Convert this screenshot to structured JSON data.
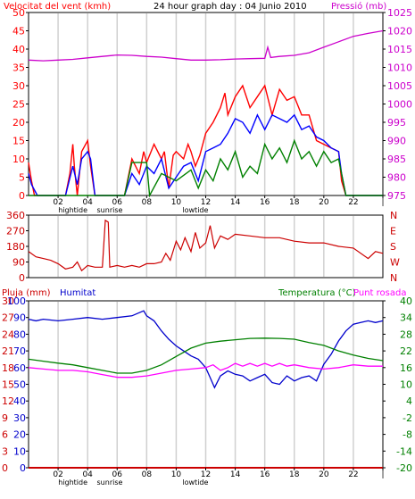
{
  "header": {
    "wind_label": "Velocitat del vent (kmh)",
    "title": "24 hour graph day : 04 Junio 2010",
    "pressure_label": "Pressió (mb)"
  },
  "legend2": {
    "rain_label": "Pluja (mm)",
    "humidity_label": "Humitat",
    "temp_label": "Temperatura (°C)",
    "dew_label": "Punt rosada"
  },
  "colors": {
    "wind": "#ff0000",
    "gust": "#0000ff",
    "windavg": "#008000",
    "pressure": "#cc00cc",
    "direction": "#cc0000",
    "humidity": "#0000cc",
    "temp": "#008000",
    "dew": "#ff00ff",
    "rain": "#cc0000",
    "grid": "#d0d0d0",
    "frame": "#000000"
  },
  "chart_data": [
    {
      "type": "line",
      "title": "24 hour graph day : 04 Junio 2010",
      "ylabel": "Velocitat del vent (kmh)",
      "y2label": "Pressió (mb)",
      "ylim": [
        0,
        50
      ],
      "y2lim": [
        975,
        1025
      ],
      "x_ticks": [
        "02",
        "04",
        "06",
        "08",
        "10",
        "12",
        "14",
        "16",
        "18",
        "20",
        "22",
        ""
      ],
      "x_annotations": [
        {
          "label": "hightide",
          "hour": 3.0
        },
        {
          "label": "sunrise",
          "hour": 5.5
        },
        {
          "label": "lowtide",
          "hour": 11.3
        }
      ],
      "yticks": [
        0,
        5,
        10,
        15,
        20,
        25,
        30,
        35,
        40,
        45,
        50
      ],
      "y2ticks": [
        975,
        980,
        985,
        990,
        995,
        1000,
        1005,
        1010,
        1015,
        1020,
        1025
      ],
      "series": [
        {
          "name": "wind",
          "color": "#ff0000",
          "x": [
            0,
            0.2,
            0.4,
            0.6,
            2.5,
            2.8,
            3.0,
            3.1,
            3.2,
            3.3,
            3.6,
            4.0,
            4.2,
            4.5,
            6.5,
            7.0,
            7.5,
            7.8,
            8.0,
            8.5,
            9.0,
            9.2,
            9.5,
            9.8,
            10.0,
            10.5,
            10.8,
            11.0,
            11.3,
            11.6,
            12.0,
            12.5,
            13.0,
            13.3,
            13.5,
            14.0,
            14.5,
            15.0,
            15.5,
            16.0,
            16.5,
            17.0,
            17.5,
            18.0,
            18.5,
            19.0,
            19.5,
            20.0,
            20.5,
            21.0,
            21.2,
            21.5,
            22.0,
            24.0
          ],
          "y": [
            9,
            4,
            0,
            0,
            0,
            6,
            14,
            8,
            4,
            0,
            12,
            15,
            8,
            0,
            0,
            10,
            6,
            12,
            9,
            14,
            10,
            12,
            2,
            11,
            12,
            10,
            14,
            12,
            8,
            11,
            17,
            20,
            24,
            28,
            22,
            27,
            30,
            24,
            27,
            30,
            22,
            29,
            26,
            27,
            22,
            22,
            15,
            14,
            13,
            12,
            4,
            0,
            0,
            0
          ]
        },
        {
          "name": "gust",
          "color": "#0000ff",
          "x": [
            0,
            0.2,
            0.6,
            2.5,
            3.0,
            3.3,
            3.6,
            4.0,
            4.2,
            4.5,
            6.5,
            7.0,
            7.5,
            8.0,
            8.5,
            9.0,
            9.5,
            10.0,
            10.5,
            11.0,
            11.5,
            12.0,
            12.5,
            13.0,
            13.5,
            14.0,
            14.5,
            15.0,
            15.5,
            16.0,
            16.5,
            17.0,
            17.5,
            18.0,
            18.5,
            19.0,
            19.5,
            20.0,
            20.5,
            21.0,
            21.2,
            21.5,
            22.0,
            24.0
          ],
          "y": [
            6,
            3,
            0,
            0,
            8,
            3,
            10,
            12,
            10,
            0,
            0,
            6,
            3,
            8,
            6,
            10,
            2,
            5,
            8,
            9,
            4,
            12,
            13,
            14,
            17,
            21,
            20,
            17,
            22,
            18,
            22,
            21,
            20,
            22,
            18,
            19,
            16,
            15,
            13,
            12,
            6,
            0,
            0,
            0
          ]
        },
        {
          "name": "windavg",
          "color": "#008000",
          "x": [
            0,
            6.5,
            7.0,
            8.0,
            8.2,
            9.0,
            10.0,
            11.0,
            11.5,
            12.0,
            12.5,
            13.0,
            13.5,
            14.0,
            14.5,
            15.0,
            15.5,
            16.0,
            16.5,
            17.0,
            17.5,
            18.0,
            18.5,
            19.0,
            19.5,
            20.0,
            20.5,
            21.0,
            21.5,
            24.0
          ],
          "y": [
            0,
            0,
            9,
            9,
            0,
            6,
            4,
            7,
            2,
            7,
            4,
            10,
            7,
            12,
            5,
            8,
            6,
            14,
            10,
            13,
            9,
            15,
            10,
            12,
            8,
            12,
            9,
            10,
            0,
            0
          ]
        },
        {
          "name": "pressure",
          "color": "#cc00cc",
          "axis": "y2",
          "x": [
            0,
            1,
            2,
            3,
            4,
            5,
            6,
            7,
            8,
            9,
            10,
            11,
            12,
            13,
            14,
            15,
            16,
            16.2,
            16.4,
            17,
            18,
            19,
            20,
            21,
            22,
            23,
            24
          ],
          "y": [
            1012,
            1011.8,
            1012,
            1012.2,
            1012.6,
            1013,
            1013.4,
            1013.3,
            1013,
            1012.8,
            1012.4,
            1012,
            1012,
            1012.1,
            1012.3,
            1012.4,
            1012.5,
            1015.5,
            1012.7,
            1013,
            1013.3,
            1014,
            1015.5,
            1017,
            1018.5,
            1019.3,
            1020
          ]
        }
      ]
    },
    {
      "type": "line",
      "ylabel": "",
      "ylim": [
        0,
        360
      ],
      "yticks": [
        0,
        90,
        180,
        270,
        360
      ],
      "y2ticks_labels": [
        "N",
        "W",
        "S",
        "E",
        "N"
      ],
      "series": [
        {
          "name": "direction",
          "color": "#cc0000",
          "x": [
            0,
            0.5,
            1.0,
            1.5,
            2.0,
            2.5,
            3.0,
            3.3,
            3.6,
            4.0,
            4.5,
            5.0,
            5.2,
            5.4,
            5.5,
            6.0,
            6.5,
            7.0,
            7.5,
            8.0,
            8.5,
            9.0,
            9.3,
            9.6,
            10.0,
            10.3,
            10.6,
            11.0,
            11.3,
            11.6,
            12.0,
            12.3,
            12.6,
            13.0,
            13.5,
            14.0,
            15.0,
            16.0,
            17.0,
            18.0,
            19.0,
            20.0,
            21.0,
            22.0,
            23.0,
            23.5,
            24.0
          ],
          "y": [
            150,
            120,
            110,
            100,
            80,
            50,
            60,
            90,
            40,
            70,
            60,
            60,
            330,
            320,
            60,
            70,
            60,
            70,
            60,
            80,
            80,
            90,
            140,
            100,
            210,
            160,
            230,
            150,
            260,
            170,
            200,
            300,
            170,
            240,
            220,
            250,
            240,
            230,
            230,
            210,
            200,
            200,
            180,
            170,
            110,
            150,
            140
          ]
        }
      ]
    },
    {
      "type": "line",
      "ylim": [
        0,
        30
      ],
      "ylabel": "Pluja (mm)",
      "yticks": [
        0,
        3,
        6,
        9,
        12,
        15,
        18,
        21,
        24,
        27,
        30
      ],
      "y_hum_ticks": [
        0,
        10,
        20,
        30,
        40,
        50,
        60,
        70,
        80,
        90,
        100
      ],
      "y2label": "Temperatura (°C)",
      "y2lim": [
        -20,
        40
      ],
      "y2ticks": [
        -20,
        -14,
        -8,
        -2,
        4,
        10,
        16,
        22,
        28,
        34,
        40
      ],
      "series": [
        {
          "name": "humidity",
          "color": "#0000cc",
          "axis": "hum",
          "x": [
            0,
            0.5,
            1,
            2,
            3,
            4,
            5,
            6,
            7,
            7.8,
            8.0,
            8.5,
            9,
            9.5,
            10,
            10.5,
            11,
            11.5,
            12,
            12.3,
            12.6,
            13,
            13.5,
            14,
            14.5,
            15,
            15.5,
            16,
            16.5,
            17,
            17.5,
            18,
            18.5,
            19,
            19.5,
            20,
            20.5,
            21,
            21.5,
            22,
            22.5,
            23,
            23.5,
            24
          ],
          "y": [
            89,
            88,
            89,
            88,
            89,
            90,
            89,
            90,
            91,
            94,
            91,
            88,
            82,
            77,
            73,
            70,
            67,
            65,
            60,
            54,
            48,
            55,
            58,
            56,
            55,
            52,
            54,
            56,
            51,
            50,
            55,
            52,
            54,
            55,
            52,
            62,
            68,
            76,
            82,
            86,
            87,
            88,
            87,
            88
          ]
        },
        {
          "name": "temp",
          "color": "#008000",
          "axis": "y2",
          "x": [
            0,
            1,
            2,
            3,
            4,
            5,
            6,
            7,
            8,
            9,
            10,
            11,
            12,
            13,
            14,
            15,
            16,
            17,
            18,
            19,
            20,
            21,
            22,
            23,
            24
          ],
          "y": [
            19,
            18.3,
            17.6,
            17,
            16,
            15,
            14,
            14,
            15,
            17,
            20,
            23,
            24.8,
            25.5,
            26,
            26.5,
            26.6,
            26.5,
            26.2,
            25,
            24,
            22,
            20.5,
            19.3,
            18.5
          ]
        },
        {
          "name": "dew",
          "color": "#ff00ff",
          "axis": "y2",
          "x": [
            0,
            1,
            2,
            3,
            4,
            5,
            6,
            7,
            8,
            9,
            10,
            11,
            12,
            12.5,
            13,
            13.5,
            14,
            14.5,
            15,
            15.5,
            16,
            16.5,
            17,
            17.5,
            18,
            18.5,
            19,
            20,
            21,
            22,
            23,
            24
          ],
          "y": [
            16,
            15.5,
            15,
            15,
            14.5,
            13.5,
            12.5,
            12.5,
            13,
            14,
            15,
            15.5,
            16,
            17,
            15,
            16,
            17.5,
            16.5,
            17.5,
            16.5,
            17.5,
            16.5,
            17.5,
            16.5,
            17,
            16.5,
            16,
            15.5,
            16,
            17,
            16.5,
            16.5
          ]
        },
        {
          "name": "rain",
          "color": "#cc0000",
          "axis": "y",
          "x": [
            0,
            24
          ],
          "y": [
            0,
            0
          ]
        }
      ]
    }
  ]
}
